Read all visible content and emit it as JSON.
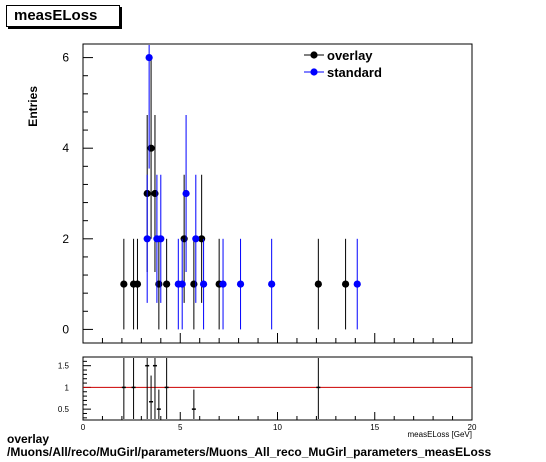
{
  "title": "measELoss",
  "footer": {
    "line1": "overlay",
    "line2": "/Muons/All/reco/MuGirl/parameters/Muons_All_reco_MuGirl_parameters_measELoss"
  },
  "colors": {
    "overlay": "#000000",
    "standard": "#0000ff",
    "ratio_line": "#cc0000"
  },
  "chart_data": [
    {
      "type": "scatter",
      "ylabel": "Entries",
      "xlabel": "measELoss [GeV]",
      "xlim": [
        0,
        20
      ],
      "ylim": [
        -0.3,
        6.3
      ],
      "yticks": [
        0,
        2,
        4,
        6
      ],
      "legend": {
        "position": "top-right",
        "entries": [
          "overlay",
          "standard"
        ]
      },
      "series": [
        {
          "name": "overlay",
          "x": [
            2.1,
            2.6,
            2.8,
            3.3,
            3.5,
            3.9,
            3.7,
            4.3,
            5.2,
            5.7,
            6.1,
            7.0,
            12.1,
            13.5
          ],
          "y": [
            1,
            1,
            1,
            3,
            4,
            1,
            3,
            1,
            2,
            1,
            2,
            1,
            1,
            1
          ]
        },
        {
          "name": "standard",
          "x": [
            3.4,
            3.3,
            3.8,
            4.0,
            4.9,
            5.1,
            5.3,
            5.8,
            6.2,
            7.2,
            8.1,
            9.7,
            14.1
          ],
          "y": [
            6,
            2,
            2,
            2,
            1,
            1,
            3,
            2,
            1,
            1,
            1,
            1,
            1
          ]
        }
      ]
    },
    {
      "type": "scatter",
      "name": "ratio",
      "xlim": [
        0,
        20
      ],
      "ylim": [
        0.25,
        1.7
      ],
      "xticks": [
        0,
        5,
        10,
        15,
        20
      ],
      "yticks": [
        0.5,
        1,
        1.5
      ],
      "reference_line": 1,
      "points": {
        "x": [
          2.1,
          2.6,
          3.3,
          3.5,
          3.7,
          3.9,
          4.3,
          5.7,
          12.1
        ],
        "y": [
          1.0,
          1.0,
          1.5,
          0.67,
          1.5,
          0.5,
          1.0,
          0.5,
          1.0
        ]
      }
    }
  ]
}
